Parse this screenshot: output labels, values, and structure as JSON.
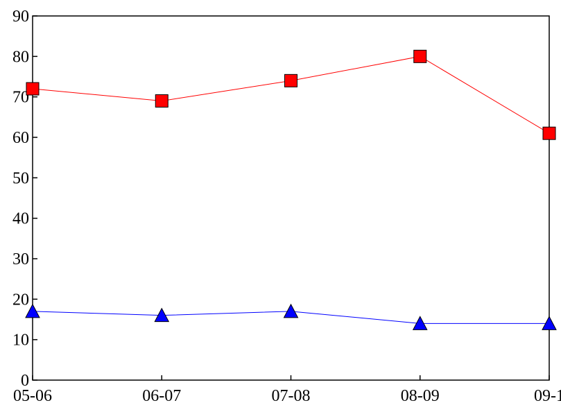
{
  "chart_data": {
    "type": "line",
    "title": "",
    "xlabel": "",
    "ylabel": "",
    "categories": [
      "05-06",
      "06-07",
      "07-08",
      "08-09",
      "09-1"
    ],
    "ylim": [
      0,
      90
    ],
    "yticks": [
      0,
      10,
      20,
      30,
      40,
      50,
      60,
      70,
      80,
      90
    ],
    "grid": false,
    "legend": "none",
    "series": [
      {
        "values": [
          72,
          69,
          74,
          80,
          61
        ],
        "color": "#ff0000",
        "marker": "square"
      },
      {
        "values": [
          17,
          16,
          17,
          14,
          14
        ],
        "color": "#0000ff",
        "marker": "triangle"
      }
    ]
  }
}
